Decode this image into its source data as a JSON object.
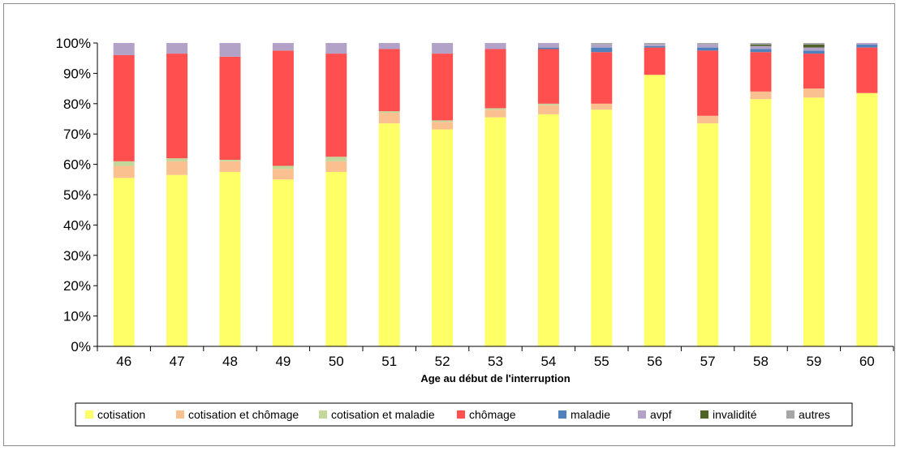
{
  "chart_data": {
    "type": "bar",
    "stacked": true,
    "normalized": true,
    "xlabel": "Age au début de l'interruption",
    "ylabel": "",
    "ylim": [
      0,
      100
    ],
    "yticks": [
      "0%",
      "10%",
      "20%",
      "30%",
      "40%",
      "50%",
      "60%",
      "70%",
      "80%",
      "90%",
      "100%"
    ],
    "categories": [
      "46",
      "47",
      "48",
      "49",
      "50",
      "51",
      "52",
      "53",
      "54",
      "55",
      "56",
      "57",
      "58",
      "59",
      "60"
    ],
    "grid": false,
    "legend_position": "bottom",
    "series": [
      {
        "name": "cotisation",
        "color": "#ffff66",
        "values": [
          55.5,
          56.5,
          57.5,
          55.0,
          57.5,
          73.5,
          71.5,
          75.5,
          76.5,
          78.0,
          89.5,
          73.5,
          81.5,
          82.0,
          83.5
        ]
      },
      {
        "name": "cotisation et chômage",
        "color": "#fac090",
        "values": [
          4.0,
          4.5,
          3.5,
          3.5,
          3.5,
          3.5,
          2.5,
          2.5,
          3.0,
          2.0,
          0.0,
          2.5,
          2.5,
          3.0,
          0.0
        ]
      },
      {
        "name": "cotisation et maladie",
        "color": "#c4d79b",
        "values": [
          1.5,
          1.0,
          0.5,
          1.0,
          1.5,
          0.5,
          0.5,
          0.5,
          0.5,
          0.0,
          0.0,
          0.0,
          0.0,
          0.0,
          0.0
        ]
      },
      {
        "name": "chômage",
        "color": "#ff4f4f",
        "values": [
          35.0,
          34.5,
          34.0,
          38.0,
          34.0,
          20.5,
          22.0,
          19.5,
          18.0,
          17.0,
          9.0,
          21.5,
          13.0,
          11.5,
          15.0
        ]
      },
      {
        "name": "maladie",
        "color": "#4f81bd",
        "values": [
          0.0,
          0.0,
          0.0,
          0.0,
          0.0,
          0.0,
          0.0,
          0.0,
          0.5,
          1.5,
          0.5,
          1.0,
          1.0,
          1.0,
          1.0
        ]
      },
      {
        "name": "avpf",
        "color": "#b3a2c7",
        "values": [
          4.0,
          3.5,
          4.5,
          2.5,
          3.5,
          2.0,
          3.5,
          2.0,
          1.5,
          1.0,
          0.5,
          1.0,
          1.0,
          1.0,
          0.5
        ]
      },
      {
        "name": "invalidité",
        "color": "#4f6228",
        "values": [
          0.0,
          0.0,
          0.0,
          0.0,
          0.0,
          0.0,
          0.0,
          0.0,
          0.0,
          0.0,
          0.0,
          0.0,
          0.5,
          1.0,
          0.0
        ]
      },
      {
        "name": "autres",
        "color": "#a6a6a6",
        "values": [
          0.0,
          0.0,
          0.0,
          0.0,
          0.0,
          0.0,
          0.0,
          0.0,
          0.0,
          0.5,
          0.5,
          0.5,
          0.5,
          0.5,
          0.0
        ]
      }
    ]
  }
}
